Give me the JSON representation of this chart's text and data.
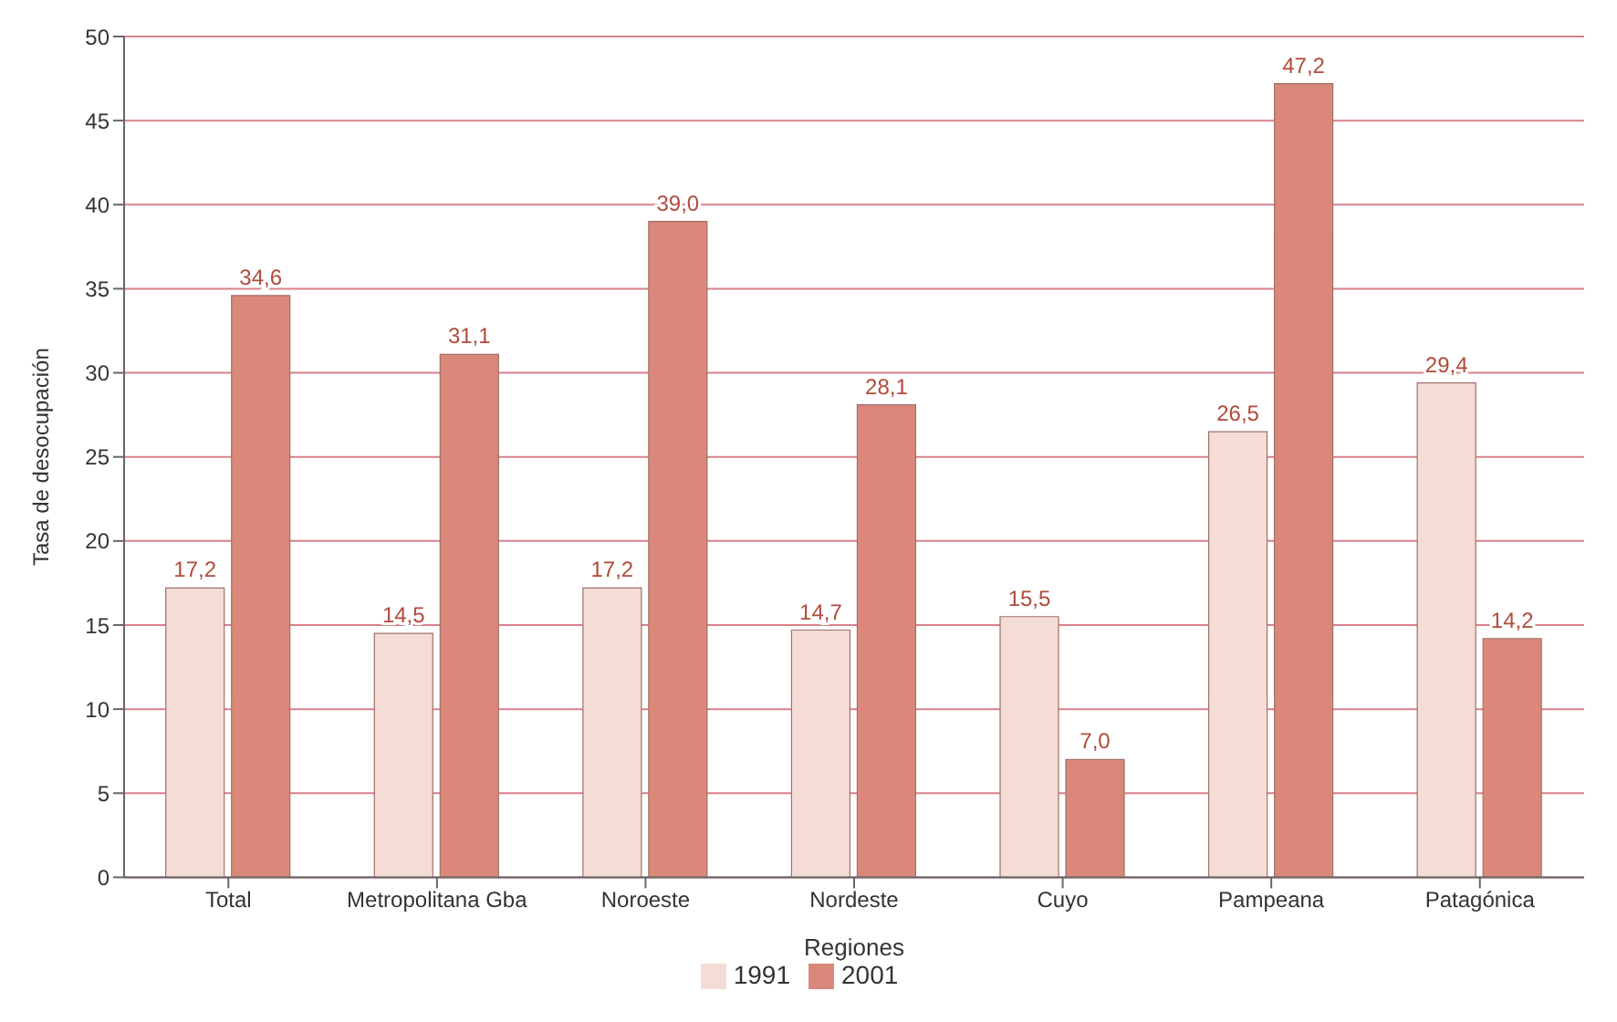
{
  "chart_data": {
    "type": "bar",
    "xlabel": "Regiones",
    "ylabel": "Tasa de desocupación",
    "categories": [
      "Total",
      "Metropolitana Gba",
      "Noroeste",
      "Nordeste",
      "Cuyo",
      "Pampeana",
      "Patagónica"
    ],
    "series": [
      {
        "name": "1991",
        "color": "#f4ddd7",
        "values": [
          17.2,
          14.5,
          17.2,
          14.7,
          15.5,
          26.5,
          29.4
        ],
        "value_labels": [
          "17,2",
          "14,5",
          "17,2",
          "14,7",
          "15,5",
          "26,5",
          "29,4"
        ]
      },
      {
        "name": "2001",
        "color": "#d9887a",
        "values": [
          34.6,
          31.1,
          39.0,
          28.1,
          7.0,
          47.2,
          14.2
        ],
        "value_labels": [
          "34,6",
          "31,1",
          "39,0",
          "28,1",
          "7,0",
          "47,2",
          "14,2"
        ]
      }
    ],
    "ylim": [
      0,
      50
    ],
    "yticks": [
      0,
      5,
      10,
      15,
      20,
      25,
      30,
      35,
      40,
      45,
      50
    ],
    "grid": "y",
    "legend": "bottom"
  }
}
